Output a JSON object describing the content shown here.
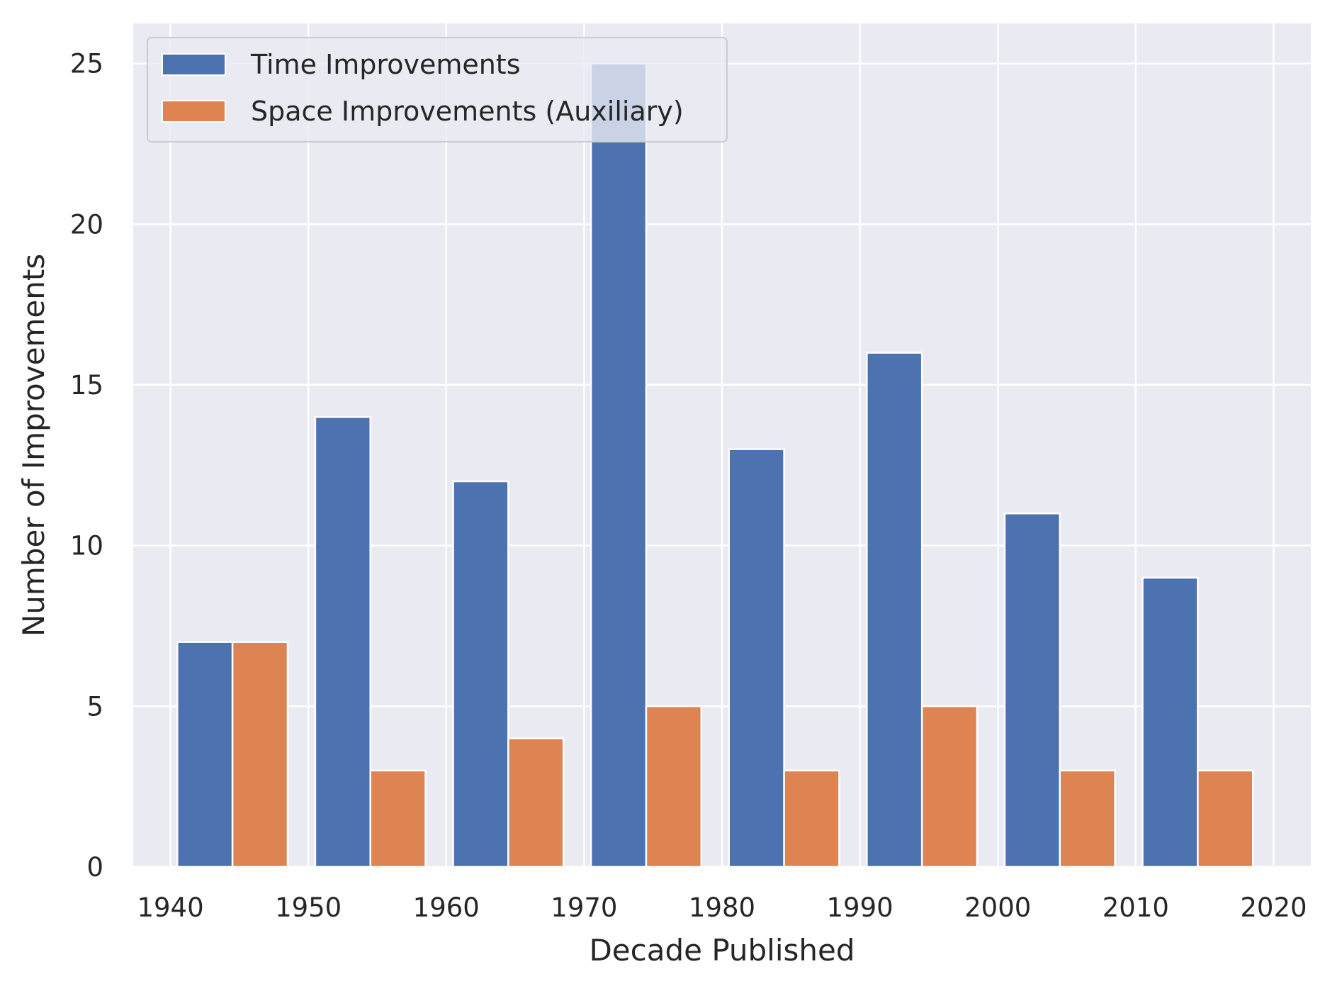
{
  "chart_data": {
    "type": "bar",
    "title": "",
    "xlabel": "Decade Published",
    "ylabel": "Number of Improvements",
    "categories": [
      "1940s",
      "1950s",
      "1960s",
      "1970s",
      "1980s",
      "1990s",
      "2000s",
      "2010s"
    ],
    "x": [
      1940,
      1950,
      1960,
      1970,
      1980,
      1990,
      2000,
      2010
    ],
    "series": [
      {
        "name": "Time Improvements",
        "color": "#4c72b0",
        "values": [
          7,
          14,
          12,
          25,
          13,
          16,
          11,
          9
        ]
      },
      {
        "name": "Space Improvements (Auxiliary)",
        "color": "#dd8452",
        "values": [
          7,
          3,
          4,
          5,
          3,
          5,
          3,
          3
        ]
      }
    ],
    "xlim": [
      1937.3,
      2022.7
    ],
    "ylim": [
      0,
      26.25
    ],
    "xticks": [
      1940,
      1950,
      1960,
      1970,
      1980,
      1990,
      2000,
      2010,
      2020
    ],
    "xtick_labels": [
      "1940",
      "1950",
      "1960",
      "1970",
      "1980",
      "1990",
      "2000",
      "2010",
      "2020"
    ],
    "yticks": [
      0,
      5,
      10,
      15,
      20,
      25
    ],
    "ytick_labels": [
      "0",
      "5",
      "10",
      "15",
      "20",
      "25"
    ],
    "grid": true,
    "legend_position": "top-left",
    "background_color": "#eaeaf2",
    "grid_color": "#ffffff"
  }
}
